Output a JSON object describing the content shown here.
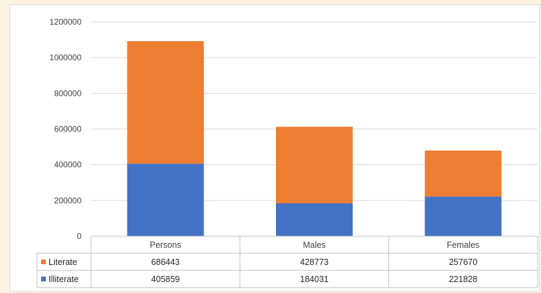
{
  "chart_data": {
    "type": "bar",
    "stacked": true,
    "categories": [
      "Persons",
      "Males",
      "Females"
    ],
    "series": [
      {
        "name": "Illiterate",
        "values": [
          405859,
          184031,
          221828
        ],
        "color": "#4472c4"
      },
      {
        "name": "Literate",
        "values": [
          686443,
          428773,
          257670
        ],
        "color": "#ed7d31"
      }
    ],
    "ylim": [
      0,
      1200000
    ],
    "yticks": [
      0,
      200000,
      400000,
      600000,
      800000,
      1000000,
      1200000
    ],
    "grid": true,
    "data_table": true,
    "data_table_rows": [
      {
        "series": "Literate",
        "values": [
          "686443",
          "428773",
          "257670"
        ]
      },
      {
        "series": "Illiterate",
        "values": [
          "405859",
          "184031",
          "221828"
        ]
      }
    ]
  }
}
